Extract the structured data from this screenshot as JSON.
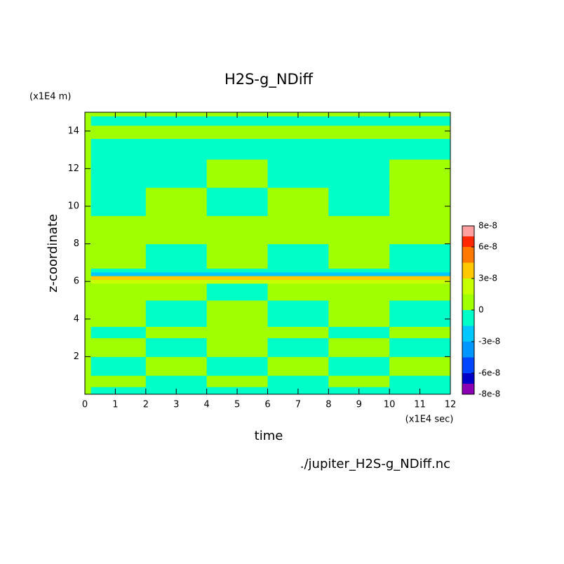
{
  "chart_data": {
    "type": "heatmap",
    "title": "H2S-g_NDiff",
    "y_unit": "(x1E4 m)",
    "x_unit": "(x1E4 sec)",
    "xlabel": "time",
    "ylabel": "z-coordinate",
    "footer": "./jupiter_H2S-g_NDiff.nc",
    "xlim": [
      0,
      12
    ],
    "xticks": [
      0,
      1,
      2,
      3,
      4,
      5,
      6,
      7,
      8,
      9,
      10,
      11,
      12
    ],
    "ylim": [
      0,
      15
    ],
    "yticks": [
      2,
      4,
      6,
      8,
      10,
      12,
      14
    ],
    "x": [
      0,
      0.2,
      2,
      4,
      6,
      8,
      10,
      12
    ],
    "y": [
      0,
      0.4,
      1,
      2,
      3,
      3.6,
      5,
      5.9,
      6.1,
      6.3,
      6.5,
      6.7,
      8,
      9.5,
      11,
      12.5,
      13.6,
      14.3,
      14.8,
      15
    ],
    "z": [
      [
        1e-08,
        -1e-08,
        -1e-08,
        -1e-08,
        -1e-08,
        -1e-08,
        -1e-08
      ],
      [
        1e-08,
        1e-08,
        -1e-08,
        1e-08,
        -1e-08,
        1e-08,
        -1e-08
      ],
      [
        1e-08,
        -1e-08,
        1e-08,
        -1e-08,
        1e-08,
        -1e-08,
        1e-08
      ],
      [
        1e-08,
        1e-08,
        -1e-08,
        1e-08,
        -1e-08,
        1e-08,
        -1e-08
      ],
      [
        1e-08,
        -1e-08,
        1e-08,
        1e-08,
        1e-08,
        -1e-08,
        1e-08
      ],
      [
        1e-08,
        1e-08,
        -1e-08,
        1e-08,
        -1e-08,
        1e-08,
        -1e-08
      ],
      [
        1e-08,
        1e-08,
        1e-08,
        -1e-08,
        1e-08,
        1e-08,
        1e-08
      ],
      [
        1e-08,
        2e-08,
        2e-08,
        2e-08,
        2e-08,
        2e-08,
        2e-08
      ],
      [
        1e-08,
        4e-08,
        3e-08,
        3e-08,
        3e-08,
        3e-08,
        3e-08
      ],
      [
        1e-08,
        -2e-08,
        -2e-08,
        -2e-08,
        -2e-08,
        -2e-08,
        -2e-08
      ],
      [
        1e-08,
        -1e-08,
        -1e-08,
        -1e-08,
        -1e-08,
        -1e-08,
        -1e-08
      ],
      [
        1e-08,
        1e-08,
        -1e-08,
        1e-08,
        -1e-08,
        1e-08,
        -1e-08
      ],
      [
        1e-08,
        1e-08,
        1e-08,
        1e-08,
        1e-08,
        1e-08,
        1e-08
      ],
      [
        1e-08,
        -1e-08,
        1e-08,
        -1e-08,
        1e-08,
        -1e-08,
        1e-08
      ],
      [
        1e-08,
        -1e-08,
        -1e-08,
        1e-08,
        -1e-08,
        -1e-08,
        1e-08
      ],
      [
        1e-08,
        -1e-08,
        -1e-08,
        -1e-08,
        -1e-08,
        -1e-08,
        -1e-08
      ],
      [
        1e-08,
        1e-08,
        1e-08,
        1e-08,
        1e-08,
        1e-08,
        1e-08
      ],
      [
        1e-08,
        -1e-08,
        -1e-08,
        -1e-08,
        -1e-08,
        -1e-08,
        -1e-08
      ],
      [
        1e-08,
        1e-08,
        1e-08,
        1e-08,
        1e-08,
        1e-08,
        1e-08
      ]
    ],
    "colorbar": {
      "levels": [
        -8e-08,
        -7e-08,
        -6e-08,
        -4.5e-08,
        -3e-08,
        -1.5e-08,
        0,
        1.5e-08,
        3e-08,
        4.5e-08,
        6e-08,
        7e-08,
        8e-08
      ],
      "colors": [
        "#8c00b4",
        "#0000c8",
        "#0046ff",
        "#0096ff",
        "#00c8ff",
        "#00ffc8",
        "#a0ff00",
        "#c8ff00",
        "#ffc800",
        "#ff7800",
        "#ff2800",
        "#ffa0a0"
      ],
      "ticks": [
        8e-08,
        6e-08,
        3e-08,
        0,
        -3e-08,
        -6e-08,
        -8e-08
      ]
    }
  }
}
